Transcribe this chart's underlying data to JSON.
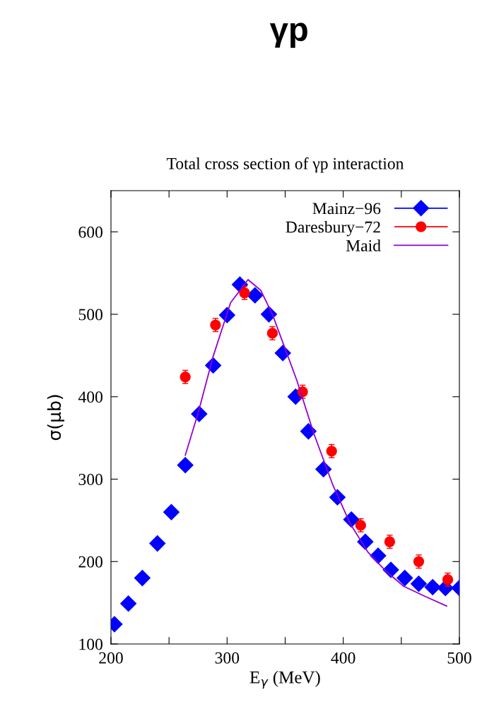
{
  "chart_data": {
    "type": "scatter",
    "title": "γp",
    "subtitle": "Total cross section of γp interaction",
    "xlabel": "E$_{γ}$ (MeV)",
    "ylabel": "σ(μb)",
    "xlim": [
      200,
      500
    ],
    "ylim": [
      100,
      650
    ],
    "xticks": [
      200,
      {
        "value": 250,
        "label": null
      },
      300,
      {
        "value": 350,
        "label": null
      },
      400,
      {
        "value": 450,
        "label": null
      },
      500
    ],
    "yticks": [
      100,
      200,
      300,
      400,
      500,
      600
    ],
    "grid": false,
    "legend": "top right",
    "series": [
      {
        "name": "Mainz−96",
        "marker": "diamond",
        "color": "#0000ff",
        "x": [
          203,
          215,
          227,
          240,
          252,
          264,
          276,
          288,
          300,
          311,
          324,
          336,
          348,
          359,
          370,
          383,
          395,
          407,
          419,
          430,
          441,
          453,
          465,
          477,
          488,
          500
        ],
        "values": [
          124,
          149,
          180,
          222,
          260,
          317,
          379,
          438,
          499,
          536,
          523,
          500,
          453,
          400,
          358,
          312,
          278,
          251,
          224,
          207,
          190,
          180,
          173,
          169,
          168,
          168
        ]
      },
      {
        "name": "Daresbury−72",
        "marker": "circle",
        "color": "#ff0000",
        "x": [
          264,
          290,
          315,
          339,
          365,
          390,
          415,
          440,
          465,
          490
        ],
        "values": [
          424,
          487,
          526,
          477,
          406,
          334,
          244,
          224,
          200,
          178
        ],
        "errors": [
          8,
          8,
          8,
          8,
          8,
          8,
          8,
          8,
          8,
          8
        ]
      },
      {
        "name": "Maid",
        "type": "line",
        "marker": "none",
        "color": "#9400d3",
        "x": [
          264,
          275,
          288,
          303,
          318,
          329,
          339,
          360,
          375,
          391,
          406,
          421,
          437,
          452,
          470,
          489
        ],
        "values": [
          329,
          380,
          449,
          514,
          542,
          529,
          500,
          420,
          354,
          293,
          246,
          212,
          188,
          170,
          158,
          146
        ]
      }
    ]
  }
}
